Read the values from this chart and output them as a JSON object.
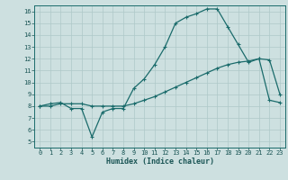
{
  "title": "",
  "xlabel": "Humidex (Indice chaleur)",
  "xlim": [
    -0.5,
    23.5
  ],
  "ylim": [
    4.5,
    16.5
  ],
  "yticks": [
    5,
    6,
    7,
    8,
    9,
    10,
    11,
    12,
    13,
    14,
    15,
    16
  ],
  "xticks": [
    0,
    1,
    2,
    3,
    4,
    5,
    6,
    7,
    8,
    9,
    10,
    11,
    12,
    13,
    14,
    15,
    16,
    17,
    18,
    19,
    20,
    21,
    22,
    23
  ],
  "bg_color": "#cde0e0",
  "grid_color": "#aec8c8",
  "line_color": "#1a6b6b",
  "line1_x": [
    0,
    1,
    2,
    3,
    4,
    5,
    6,
    7,
    8,
    9,
    10,
    11,
    12,
    13,
    14,
    15,
    16,
    17,
    18,
    19,
    20,
    21,
    22,
    23
  ],
  "line1_y": [
    8.0,
    8.2,
    8.3,
    7.8,
    7.8,
    5.4,
    7.5,
    7.8,
    7.8,
    9.5,
    10.3,
    11.5,
    13.0,
    15.0,
    15.5,
    15.8,
    16.2,
    16.2,
    14.7,
    13.2,
    11.7,
    12.0,
    11.9,
    9.0
  ],
  "line2_x": [
    0,
    1,
    2,
    3,
    4,
    5,
    6,
    7,
    8,
    9,
    10,
    11,
    12,
    13,
    14,
    15,
    16,
    17,
    18,
    19,
    20,
    21,
    22,
    23
  ],
  "line2_y": [
    8.0,
    8.0,
    8.2,
    8.2,
    8.2,
    8.0,
    8.0,
    8.0,
    8.0,
    8.2,
    8.5,
    8.8,
    9.2,
    9.6,
    10.0,
    10.4,
    10.8,
    11.2,
    11.5,
    11.7,
    11.8,
    12.0,
    8.5,
    8.3
  ],
  "tick_fontsize": 5,
  "xlabel_fontsize": 6,
  "xlabel_color": "#1a5555",
  "tick_color": "#1a5555"
}
